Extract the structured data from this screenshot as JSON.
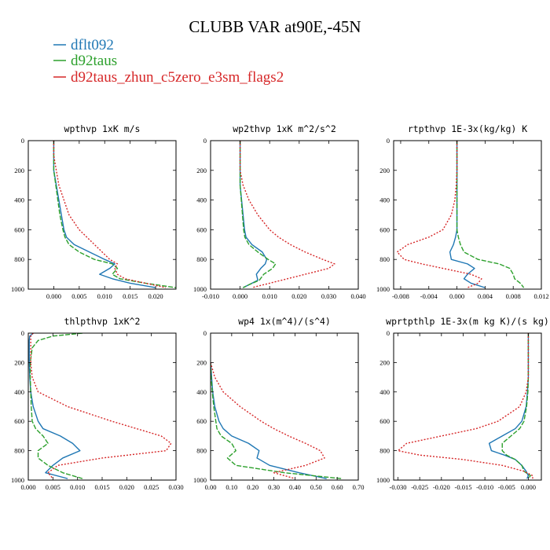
{
  "figure": {
    "title": "CLUBB VAR at90E,-45N",
    "legend": [
      {
        "label": "dflt092",
        "color": "#1f77b4",
        "style": "solid"
      },
      {
        "label": "d92taus",
        "color": "#2ca02c",
        "style": "dashed"
      },
      {
        "label": "d92taus_zhun_c5zero_e3sm_flags2",
        "color": "#d62728",
        "style": "dotted"
      }
    ],
    "colors": {
      "dflt092": "#1f77b4",
      "d92taus": "#2ca02c",
      "d92taus_zhun_c5zero_e3sm_flags2": "#d62728"
    }
  },
  "chart_data": [
    {
      "type": "line",
      "title": "wpthvp  1xK m/s",
      "xlim": [
        -0.005,
        0.024
      ],
      "ylim": [
        1000,
        0
      ],
      "xticks": [
        0.0,
        0.005,
        0.01,
        0.015,
        0.02
      ],
      "xtick_labels": [
        "0.000",
        "0.005",
        "0.010",
        "0.015",
        "0.020"
      ],
      "yticks": [
        0,
        200,
        400,
        600,
        800,
        1000
      ],
      "ytick_labels": [
        "0",
        "200",
        "400",
        "600",
        "800",
        "1000"
      ],
      "y": [
        0,
        100,
        200,
        300,
        400,
        500,
        600,
        650,
        700,
        750,
        800,
        830,
        860,
        900,
        930,
        960,
        990
      ],
      "series": [
        {
          "name": "dflt092",
          "values": [
            0.0,
            0.0,
            0.0,
            0.0005,
            0.001,
            0.0015,
            0.002,
            0.0025,
            0.004,
            0.007,
            0.01,
            0.012,
            0.011,
            0.009,
            0.0115,
            0.015,
            0.02
          ]
        },
        {
          "name": "d92taus",
          "values": [
            0.0,
            0.0,
            0.0,
            0.0004,
            0.0008,
            0.0012,
            0.0018,
            0.0022,
            0.003,
            0.005,
            0.008,
            0.0115,
            0.0125,
            0.0115,
            0.013,
            0.018,
            0.024
          ]
        },
        {
          "name": "d92taus_zhun_c5zero_e3sm_flags2",
          "values": [
            0.0,
            0.0,
            0.0005,
            0.001,
            0.002,
            0.003,
            0.005,
            0.0065,
            0.008,
            0.0095,
            0.011,
            0.0125,
            0.012,
            0.0125,
            0.014,
            0.018,
            0.022
          ]
        }
      ]
    },
    {
      "type": "line",
      "title": "wp2thvp  1xK m^2/s^2",
      "xlim": [
        -0.01,
        0.04
      ],
      "ylim": [
        1000,
        0
      ],
      "xticks": [
        -0.01,
        0.0,
        0.01,
        0.02,
        0.03,
        0.04
      ],
      "xtick_labels": [
        "-0.010",
        "0.000",
        "0.010",
        "0.020",
        "0.030",
        "0.040"
      ],
      "yticks": [
        0,
        200,
        400,
        600,
        800,
        1000
      ],
      "ytick_labels": [
        "0",
        "200",
        "400",
        "600",
        "800",
        "1000"
      ],
      "y": [
        0,
        100,
        200,
        300,
        400,
        500,
        600,
        650,
        700,
        750,
        800,
        830,
        860,
        900,
        940,
        970,
        990
      ],
      "series": [
        {
          "name": "dflt092",
          "values": [
            0.0,
            0.0,
            0.0,
            0.0,
            0.0005,
            0.001,
            0.0015,
            0.002,
            0.004,
            0.0075,
            0.009,
            0.0085,
            0.007,
            0.0055,
            0.006,
            0.003,
            0.001
          ]
        },
        {
          "name": "d92taus",
          "values": [
            0.0,
            0.0,
            0.0,
            0.0,
            0.0004,
            0.0008,
            0.0012,
            0.0016,
            0.003,
            0.006,
            0.0095,
            0.012,
            0.011,
            0.008,
            0.0065,
            0.003,
            0.001
          ]
        },
        {
          "name": "d92taus_zhun_c5zero_e3sm_flags2",
          "values": [
            0.0,
            0.0,
            0.0,
            0.001,
            0.003,
            0.006,
            0.01,
            0.013,
            0.017,
            0.022,
            0.028,
            0.032,
            0.03,
            0.022,
            0.014,
            0.008,
            0.004
          ]
        }
      ]
    },
    {
      "type": "line",
      "title": "rtpthvp  1E-3x(kg/kg) K",
      "xlim": [
        -0.009,
        0.012
      ],
      "ylim": [
        1000,
        0
      ],
      "xticks": [
        -0.008,
        -0.004,
        0.0,
        0.004,
        0.008,
        0.012
      ],
      "xtick_labels": [
        "-0.008",
        "-0.004",
        "0.000",
        "0.004",
        "0.008",
        "0.012"
      ],
      "yticks": [
        0,
        200,
        400,
        600,
        800,
        1000
      ],
      "ytick_labels": [
        "0",
        "200",
        "400",
        "600",
        "800",
        "1000"
      ],
      "y": [
        0,
        100,
        200,
        300,
        400,
        500,
        600,
        650,
        700,
        750,
        800,
        830,
        860,
        900,
        930,
        960,
        990
      ],
      "series": [
        {
          "name": "dflt092",
          "values": [
            0.0,
            0.0,
            0.0,
            0.0,
            0.0,
            0.0,
            0.0,
            -0.0002,
            -0.0005,
            -0.001,
            -0.0008,
            0.0015,
            0.0025,
            0.0015,
            0.001,
            0.002,
            0.004
          ]
        },
        {
          "name": "d92taus",
          "values": [
            0.0,
            0.0,
            0.0,
            0.0,
            0.0,
            0.0,
            0.0,
            0.0002,
            0.0005,
            0.001,
            0.003,
            0.006,
            0.0075,
            0.008,
            0.0082,
            0.009,
            0.0095
          ]
        },
        {
          "name": "d92taus_zhun_c5zero_e3sm_flags2",
          "values": [
            0.0,
            0.0,
            0.0,
            -0.0001,
            -0.0003,
            -0.0008,
            -0.002,
            -0.004,
            -0.007,
            -0.0085,
            -0.0075,
            -0.005,
            -0.002,
            0.002,
            0.0035,
            0.003,
            0.0015
          ]
        }
      ]
    },
    {
      "type": "line",
      "title": "thlpthvp  1xK^2",
      "xlim": [
        0.0,
        0.03
      ],
      "ylim": [
        1000,
        0
      ],
      "xticks": [
        0.0,
        0.005,
        0.01,
        0.015,
        0.02,
        0.025,
        0.03
      ],
      "xtick_labels": [
        "0.000",
        "0.005",
        "0.010",
        "0.015",
        "0.020",
        "0.025",
        "0.030"
      ],
      "yticks": [
        0,
        200,
        400,
        600,
        800,
        1000
      ],
      "ytick_labels": [
        "0",
        "200",
        "400",
        "600",
        "800",
        "1000"
      ],
      "y": [
        0,
        20,
        50,
        100,
        200,
        300,
        400,
        500,
        600,
        650,
        700,
        750,
        800,
        850,
        900,
        950,
        990
      ],
      "series": [
        {
          "name": "dflt092",
          "values": [
            0.001,
            0.0003,
            0.0002,
            0.0002,
            0.0002,
            0.0003,
            0.0005,
            0.001,
            0.002,
            0.003,
            0.0065,
            0.009,
            0.0105,
            0.007,
            0.005,
            0.0035,
            0.008
          ]
        },
        {
          "name": "d92taus",
          "values": [
            0.011,
            0.005,
            0.002,
            0.0008,
            0.0004,
            0.0004,
            0.0005,
            0.0006,
            0.0008,
            0.0015,
            0.003,
            0.004,
            0.002,
            0.002,
            0.004,
            0.007,
            0.011
          ]
        },
        {
          "name": "d92taus_zhun_c5zero_e3sm_flags2",
          "values": [
            0.001,
            0.0005,
            0.0005,
            0.0005,
            0.0005,
            0.0008,
            0.002,
            0.008,
            0.017,
            0.022,
            0.027,
            0.029,
            0.028,
            0.015,
            0.006,
            0.004,
            0.005
          ]
        }
      ]
    },
    {
      "type": "line",
      "title": "wp4  1x(m^4)/(s^4)",
      "xlim": [
        0.0,
        0.7
      ],
      "ylim": [
        1000,
        0
      ],
      "xticks": [
        0.0,
        0.1,
        0.2,
        0.3,
        0.4,
        0.5,
        0.6,
        0.7
      ],
      "xtick_labels": [
        "0.00",
        "0.10",
        "0.20",
        "0.30",
        "0.40",
        "0.50",
        "0.60",
        "0.70"
      ],
      "yticks": [
        0,
        200,
        400,
        600,
        800,
        1000
      ],
      "ytick_labels": [
        "0",
        "200",
        "400",
        "600",
        "800",
        "1000"
      ],
      "y": [
        200,
        300,
        400,
        500,
        600,
        650,
        700,
        750,
        800,
        850,
        900,
        950,
        990
      ],
      "series": [
        {
          "name": "dflt092",
          "values": [
            0.0,
            0.005,
            0.01,
            0.02,
            0.04,
            0.06,
            0.1,
            0.18,
            0.23,
            0.22,
            0.28,
            0.42,
            0.55
          ]
        },
        {
          "name": "d92taus",
          "values": [
            0.0,
            0.003,
            0.008,
            0.015,
            0.025,
            0.03,
            0.05,
            0.1,
            0.12,
            0.08,
            0.12,
            0.35,
            0.62
          ]
        },
        {
          "name": "d92taus_zhun_c5zero_e3sm_flags2",
          "values": [
            0.0,
            0.02,
            0.06,
            0.14,
            0.24,
            0.3,
            0.37,
            0.45,
            0.52,
            0.54,
            0.45,
            0.3,
            0.4
          ]
        }
      ]
    },
    {
      "type": "line",
      "title": "wprtpthlp  1E-3x(m kg K)/(s kg)",
      "xlim": [
        -0.031,
        0.003
      ],
      "ylim": [
        1000,
        0
      ],
      "xticks": [
        -0.03,
        -0.025,
        -0.02,
        -0.015,
        -0.01,
        -0.005,
        0.0
      ],
      "xtick_labels": [
        "-0.030",
        "-0.025",
        "-0.020",
        "-0.015",
        "-0.010",
        "-0.005",
        "0.000"
      ],
      "yticks": [
        0,
        200,
        400,
        600,
        800,
        1000
      ],
      "ytick_labels": [
        "0",
        "200",
        "400",
        "600",
        "800",
        "1000"
      ],
      "y": [
        0,
        100,
        200,
        300,
        400,
        500,
        600,
        650,
        700,
        750,
        800,
        830,
        860,
        900,
        940,
        970,
        990
      ],
      "series": [
        {
          "name": "dflt092",
          "values": [
            0.0,
            0.0,
            0.0,
            0.0,
            -0.0002,
            -0.0005,
            -0.0015,
            -0.003,
            -0.006,
            -0.009,
            -0.0085,
            -0.0055,
            -0.003,
            -0.0015,
            -0.0005,
            0.0,
            -0.0003
          ]
        },
        {
          "name": "d92taus",
          "values": [
            0.0,
            0.0,
            0.0,
            0.0,
            -0.0001,
            -0.0004,
            -0.001,
            -0.002,
            -0.004,
            -0.006,
            -0.006,
            -0.005,
            -0.003,
            -0.0015,
            -0.001,
            0.0005,
            0.0
          ]
        },
        {
          "name": "d92taus_zhun_c5zero_e3sm_flags2",
          "values": [
            0.0,
            0.0,
            0.0,
            0.0,
            -0.0005,
            -0.002,
            -0.007,
            -0.012,
            -0.02,
            -0.028,
            -0.03,
            -0.025,
            -0.015,
            -0.006,
            -0.001,
            0.001,
            0.001
          ]
        }
      ]
    }
  ]
}
